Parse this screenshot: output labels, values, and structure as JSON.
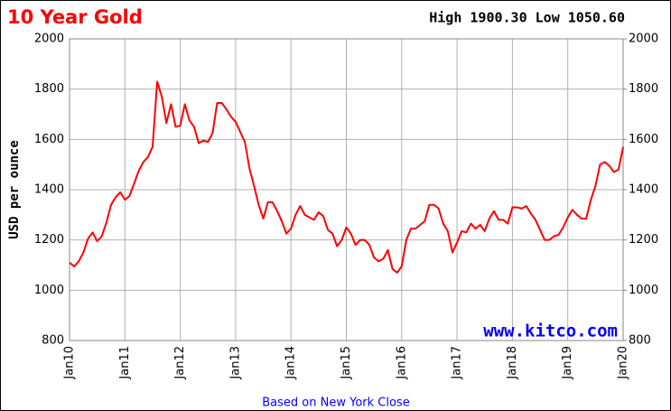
{
  "chart_data": {
    "type": "line",
    "title": "10 Year Gold",
    "annotation": "High 1900.30 Low 1050.60",
    "y_label": "USD per ounce",
    "watermark": "www.kitco.com",
    "footer": "Based on New York Close",
    "x": [
      "2010-01",
      "2010-02",
      "2010-03",
      "2010-04",
      "2010-05",
      "2010-06",
      "2010-07",
      "2010-08",
      "2010-09",
      "2010-10",
      "2010-11",
      "2010-12",
      "2011-01",
      "2011-02",
      "2011-03",
      "2011-04",
      "2011-05",
      "2011-06",
      "2011-07",
      "2011-08",
      "2011-09",
      "2011-10",
      "2011-11",
      "2011-12",
      "2012-01",
      "2012-02",
      "2012-03",
      "2012-04",
      "2012-05",
      "2012-06",
      "2012-07",
      "2012-08",
      "2012-09",
      "2012-10",
      "2012-11",
      "2012-12",
      "2013-01",
      "2013-02",
      "2013-03",
      "2013-04",
      "2013-05",
      "2013-06",
      "2013-07",
      "2013-08",
      "2013-09",
      "2013-10",
      "2013-11",
      "2013-12",
      "2014-01",
      "2014-02",
      "2014-03",
      "2014-04",
      "2014-05",
      "2014-06",
      "2014-07",
      "2014-08",
      "2014-09",
      "2014-10",
      "2014-11",
      "2014-12",
      "2015-01",
      "2015-02",
      "2015-03",
      "2015-04",
      "2015-05",
      "2015-06",
      "2015-07",
      "2015-08",
      "2015-09",
      "2015-10",
      "2015-11",
      "2015-12",
      "2016-01",
      "2016-02",
      "2016-03",
      "2016-04",
      "2016-05",
      "2016-06",
      "2016-07",
      "2016-08",
      "2016-09",
      "2016-10",
      "2016-11",
      "2016-12",
      "2017-01",
      "2017-02",
      "2017-03",
      "2017-04",
      "2017-05",
      "2017-06",
      "2017-07",
      "2017-08",
      "2017-09",
      "2017-10",
      "2017-11",
      "2017-12",
      "2018-01",
      "2018-02",
      "2018-03",
      "2018-04",
      "2018-05",
      "2018-06",
      "2018-07",
      "2018-08",
      "2018-09",
      "2018-10",
      "2018-11",
      "2018-12",
      "2019-01",
      "2019-02",
      "2019-03",
      "2019-04",
      "2019-05",
      "2019-06",
      "2019-07",
      "2019-08",
      "2019-09",
      "2019-10",
      "2019-11",
      "2019-12",
      "2020-01"
    ],
    "series": [
      {
        "name": "Gold",
        "color": "#ff0000",
        "values": [
          1110,
          1095,
          1115,
          1150,
          1205,
          1230,
          1195,
          1215,
          1270,
          1340,
          1370,
          1390,
          1360,
          1375,
          1425,
          1475,
          1510,
          1530,
          1570,
          1830,
          1770,
          1665,
          1740,
          1650,
          1655,
          1740,
          1675,
          1650,
          1585,
          1595,
          1590,
          1625,
          1745,
          1745,
          1720,
          1690,
          1670,
          1630,
          1590,
          1485,
          1415,
          1340,
          1285,
          1350,
          1350,
          1315,
          1275,
          1225,
          1245,
          1300,
          1335,
          1300,
          1290,
          1280,
          1310,
          1295,
          1240,
          1225,
          1175,
          1200,
          1250,
          1225,
          1180,
          1200,
          1200,
          1180,
          1130,
          1115,
          1125,
          1160,
          1085,
          1070,
          1095,
          1200,
          1245,
          1245,
          1260,
          1275,
          1340,
          1340,
          1325,
          1265,
          1235,
          1150,
          1190,
          1235,
          1230,
          1265,
          1245,
          1260,
          1235,
          1285,
          1315,
          1280,
          1280,
          1265,
          1330,
          1330,
          1325,
          1335,
          1305,
          1280,
          1240,
          1200,
          1200,
          1215,
          1220,
          1250,
          1290,
          1320,
          1300,
          1285,
          1285,
          1360,
          1415,
          1500,
          1510,
          1495,
          1470,
          1480,
          1570
        ]
      }
    ],
    "xlim": [
      "2010-01",
      "2020-01"
    ],
    "xticks": [
      {
        "value": "2010-01",
        "label": "Jan10"
      },
      {
        "value": "2011-01",
        "label": "Jan11"
      },
      {
        "value": "2012-01",
        "label": "Jan12"
      },
      {
        "value": "2013-01",
        "label": "Jan13"
      },
      {
        "value": "2014-01",
        "label": "Jan14"
      },
      {
        "value": "2015-01",
        "label": "Jan15"
      },
      {
        "value": "2016-01",
        "label": "Jan16"
      },
      {
        "value": "2017-01",
        "label": "Jan17"
      },
      {
        "value": "2018-01",
        "label": "Jan18"
      },
      {
        "value": "2019-01",
        "label": "Jan19"
      },
      {
        "value": "2020-01",
        "label": "Jan20"
      }
    ],
    "ylim": [
      800,
      2000
    ],
    "yticks": [
      800,
      1000,
      1200,
      1400,
      1600,
      1800,
      2000
    ],
    "y2lim": [
      800,
      2000
    ],
    "y2ticks": [
      800,
      1000,
      1200,
      1400,
      1600,
      1800,
      2000
    ],
    "grid": true
  }
}
